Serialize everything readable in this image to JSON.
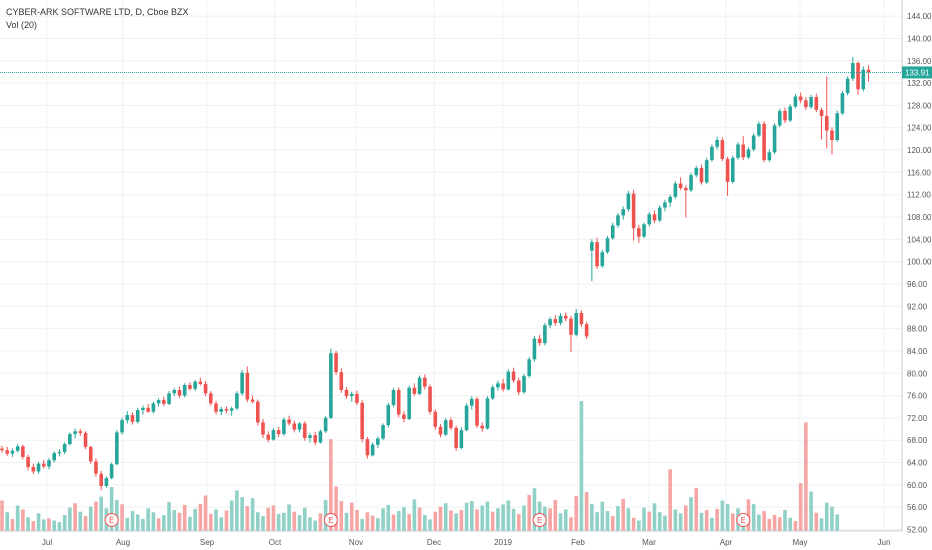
{
  "chart_data": {
    "type": "candlestick",
    "title": "CYBER-ARK SOFTWARE LTD, D, Cboe BZX",
    "subtitle": "Vol (20)",
    "y_ticks": [
      "144.00",
      "140.00",
      "136.00",
      "132.00",
      "128.00",
      "124.00",
      "120.00",
      "116.00",
      "112.00",
      "108.00",
      "104.00",
      "100.00",
      "96.00",
      "92.00",
      "88.00",
      "84.00",
      "80.00",
      "76.00",
      "72.00",
      "68.00",
      "64.00",
      "60.00",
      "56.00",
      "52.00"
    ],
    "ylim": [
      52,
      146
    ],
    "x_labels": [
      "Jul",
      "Aug",
      "Sep",
      "Oct",
      "Nov",
      "Dec",
      "2019",
      "Feb",
      "Mar",
      "Apr",
      "May",
      "Jun"
    ],
    "last_price": "133.91",
    "earnings_marker": "E",
    "grid": true,
    "colors": {
      "up": "#26a69a",
      "down": "#ef5350",
      "up_vol": "#8fd1c7",
      "down_vol": "#f5a6a4",
      "price_line": "#26a69a",
      "grid": "#eef0f3",
      "axis_text": "#555555"
    },
    "earnings_days": [
      21,
      63,
      103,
      142
    ],
    "candles": [
      [
        66.5,
        67.0,
        65.8,
        66.2
      ],
      [
        66.2,
        66.8,
        65.2,
        65.6
      ],
      [
        65.6,
        66.5,
        65.0,
        66.1
      ],
      [
        66.1,
        67.3,
        65.8,
        66.9
      ],
      [
        66.9,
        67.2,
        64.6,
        65.0
      ],
      [
        65.0,
        65.4,
        62.6,
        63.2
      ],
      [
        63.2,
        63.8,
        61.9,
        62.4
      ],
      [
        62.4,
        64.1,
        62.0,
        63.8
      ],
      [
        63.8,
        64.5,
        62.9,
        63.3
      ],
      [
        63.3,
        64.8,
        62.8,
        64.4
      ],
      [
        64.4,
        66.0,
        64.0,
        65.7
      ],
      [
        65.7,
        66.4,
        65.1,
        65.9
      ],
      [
        65.9,
        67.6,
        65.5,
        67.3
      ],
      [
        67.3,
        69.4,
        67.1,
        69.1
      ],
      [
        69.1,
        70.1,
        68.3,
        69.6
      ],
      [
        69.6,
        70.0,
        68.8,
        69.3
      ],
      [
        69.3,
        69.6,
        66.4,
        66.8
      ],
      [
        66.8,
        67.0,
        63.8,
        64.2
      ],
      [
        64.2,
        64.8,
        61.4,
        62.0
      ],
      [
        62.0,
        62.5,
        59.0,
        59.8
      ],
      [
        59.8,
        61.5,
        59.5,
        61.2
      ],
      [
        61.2,
        64.0,
        61.0,
        63.7
      ],
      [
        63.7,
        69.8,
        63.5,
        69.4
      ],
      [
        69.4,
        72.0,
        69.0,
        71.6
      ],
      [
        71.6,
        73.2,
        71.0,
        72.5
      ],
      [
        72.5,
        73.0,
        70.8,
        71.3
      ],
      [
        71.3,
        73.8,
        71.0,
        73.4
      ],
      [
        73.4,
        74.2,
        72.6,
        73.8
      ],
      [
        73.8,
        74.5,
        72.9,
        73.1
      ],
      [
        73.1,
        74.9,
        72.8,
        74.6
      ],
      [
        74.6,
        75.5,
        74.0,
        75.2
      ],
      [
        75.2,
        75.8,
        74.1,
        74.5
      ],
      [
        74.5,
        76.8,
        74.3,
        76.4
      ],
      [
        76.4,
        77.4,
        75.9,
        77.0
      ],
      [
        77.0,
        77.6,
        75.6,
        76.0
      ],
      [
        76.0,
        78.2,
        75.7,
        77.9
      ],
      [
        77.9,
        78.4,
        76.9,
        77.2
      ],
      [
        77.2,
        78.8,
        76.8,
        78.5
      ],
      [
        78.5,
        79.2,
        77.8,
        78.1
      ],
      [
        78.1,
        78.6,
        75.9,
        76.4
      ],
      [
        76.4,
        76.8,
        74.2,
        74.6
      ],
      [
        74.6,
        75.0,
        72.6,
        73.1
      ],
      [
        73.1,
        74.0,
        72.5,
        73.6
      ],
      [
        73.6,
        74.1,
        72.8,
        73.3
      ],
      [
        73.3,
        74.0,
        72.4,
        73.7
      ],
      [
        73.7,
        76.8,
        73.4,
        76.4
      ],
      [
        76.4,
        80.6,
        76.0,
        80.1
      ],
      [
        80.1,
        81.2,
        74.8,
        75.3
      ],
      [
        75.3,
        76.0,
        74.6,
        74.9
      ],
      [
        74.9,
        75.3,
        70.6,
        71.2
      ],
      [
        71.2,
        71.8,
        68.4,
        69.0
      ],
      [
        69.0,
        69.6,
        67.6,
        68.1
      ],
      [
        68.1,
        70.2,
        67.9,
        69.8
      ],
      [
        69.8,
        70.4,
        68.6,
        69.1
      ],
      [
        69.1,
        72.1,
        68.8,
        71.7
      ],
      [
        71.7,
        72.4,
        70.6,
        71.0
      ],
      [
        71.0,
        71.5,
        69.4,
        69.9
      ],
      [
        69.9,
        71.3,
        69.4,
        71.0
      ],
      [
        71.0,
        71.4,
        67.9,
        68.4
      ],
      [
        68.4,
        69.3,
        67.6,
        68.9
      ],
      [
        68.9,
        69.5,
        67.1,
        67.6
      ],
      [
        67.6,
        69.9,
        67.4,
        69.6
      ],
      [
        69.6,
        72.3,
        69.3,
        72.0
      ],
      [
        72.0,
        84.4,
        71.8,
        83.6
      ],
      [
        83.6,
        84.0,
        79.7,
        80.2
      ],
      [
        80.2,
        80.9,
        76.5,
        77.0
      ],
      [
        77.0,
        77.5,
        75.4,
        75.9
      ],
      [
        75.9,
        76.7,
        74.9,
        76.3
      ],
      [
        76.3,
        76.9,
        74.3,
        74.7
      ],
      [
        74.7,
        75.2,
        67.6,
        68.2
      ],
      [
        68.2,
        68.6,
        64.7,
        65.3
      ],
      [
        65.3,
        67.6,
        65.1,
        67.2
      ],
      [
        67.2,
        68.7,
        66.6,
        68.3
      ],
      [
        68.3,
        71.0,
        68.0,
        70.7
      ],
      [
        70.7,
        74.7,
        70.3,
        74.3
      ],
      [
        74.3,
        77.4,
        73.9,
        77.0
      ],
      [
        77.0,
        77.5,
        72.1,
        72.6
      ],
      [
        72.6,
        73.2,
        71.2,
        71.8
      ],
      [
        71.8,
        77.8,
        71.6,
        77.4
      ],
      [
        77.4,
        78.2,
        75.9,
        76.3
      ],
      [
        76.3,
        79.6,
        76.1,
        79.2
      ],
      [
        79.2,
        79.8,
        77.1,
        77.6
      ],
      [
        77.6,
        78.0,
        72.6,
        73.1
      ],
      [
        73.1,
        73.5,
        69.9,
        70.4
      ],
      [
        70.4,
        70.9,
        68.5,
        69.0
      ],
      [
        69.0,
        72.0,
        68.7,
        71.6
      ],
      [
        71.6,
        72.1,
        69.8,
        70.2
      ],
      [
        70.2,
        70.6,
        66.1,
        66.6
      ],
      [
        66.6,
        70.3,
        66.4,
        69.8
      ],
      [
        69.8,
        74.6,
        69.6,
        74.2
      ],
      [
        74.2,
        75.9,
        73.5,
        75.4
      ],
      [
        75.4,
        75.8,
        70.2,
        70.6
      ],
      [
        70.6,
        71.2,
        69.5,
        70.1
      ],
      [
        70.1,
        75.9,
        69.9,
        75.5
      ],
      [
        75.5,
        77.9,
        75.2,
        77.5
      ],
      [
        77.5,
        78.7,
        76.9,
        78.2
      ],
      [
        78.2,
        79.0,
        76.7,
        77.1
      ],
      [
        77.1,
        80.7,
        76.9,
        80.3
      ],
      [
        80.3,
        81.0,
        78.3,
        78.7
      ],
      [
        78.7,
        79.2,
        76.1,
        76.6
      ],
      [
        76.6,
        79.9,
        76.3,
        79.5
      ],
      [
        79.5,
        82.9,
        79.2,
        82.5
      ],
      [
        82.5,
        86.7,
        82.1,
        86.2
      ],
      [
        86.2,
        86.9,
        84.9,
        85.4
      ],
      [
        85.4,
        89.0,
        85.0,
        88.6
      ],
      [
        88.6,
        90.1,
        88.1,
        89.7
      ],
      [
        89.7,
        90.4,
        88.5,
        89.0
      ],
      [
        89.0,
        90.8,
        88.6,
        90.3
      ],
      [
        90.3,
        90.9,
        89.3,
        89.8
      ],
      [
        89.8,
        90.3,
        83.8,
        86.9
      ],
      [
        86.9,
        91.5,
        86.6,
        90.8
      ],
      [
        90.8,
        91.3,
        88.3,
        88.8
      ],
      [
        88.8,
        89.2,
        86.1,
        86.6
      ],
      [
        102.0,
        104.0,
        96.5,
        103.5
      ],
      [
        103.5,
        104.3,
        98.7,
        99.2
      ],
      [
        99.2,
        102.1,
        98.9,
        101.7
      ],
      [
        101.7,
        104.6,
        101.4,
        104.2
      ],
      [
        104.2,
        107.0,
        103.9,
        106.5
      ],
      [
        106.5,
        108.7,
        106.1,
        108.3
      ],
      [
        108.3,
        109.9,
        107.5,
        109.4
      ],
      [
        109.4,
        112.7,
        109.0,
        112.2
      ],
      [
        112.2,
        112.9,
        103.8,
        106.0
      ],
      [
        106.0,
        106.6,
        103.4,
        104.5
      ],
      [
        104.5,
        107.0,
        104.2,
        106.7
      ],
      [
        106.7,
        108.9,
        106.3,
        108.5
      ],
      [
        108.5,
        109.2,
        106.9,
        107.4
      ],
      [
        107.4,
        110.1,
        107.1,
        109.7
      ],
      [
        109.7,
        111.1,
        109.0,
        110.6
      ],
      [
        110.6,
        112.0,
        109.8,
        111.6
      ],
      [
        111.6,
        114.4,
        111.3,
        114.0
      ],
      [
        114.0,
        115.1,
        112.8,
        113.2
      ],
      [
        113.2,
        113.7,
        107.9,
        112.8
      ],
      [
        112.8,
        115.9,
        112.5,
        115.5
      ],
      [
        115.5,
        117.2,
        115.1,
        116.8
      ],
      [
        116.8,
        117.4,
        113.8,
        114.2
      ],
      [
        114.2,
        118.6,
        113.9,
        118.2
      ],
      [
        118.2,
        121.0,
        117.9,
        120.6
      ],
      [
        120.6,
        122.4,
        120.1,
        121.8
      ],
      [
        121.8,
        122.3,
        118.0,
        118.4
      ],
      [
        118.4,
        118.8,
        111.8,
        114.3
      ],
      [
        114.3,
        119.0,
        114.0,
        118.6
      ],
      [
        118.6,
        121.4,
        118.3,
        121.0
      ],
      [
        121.0,
        122.5,
        118.2,
        118.7
      ],
      [
        118.7,
        120.5,
        118.4,
        120.1
      ],
      [
        120.1,
        123.0,
        119.8,
        122.6
      ],
      [
        122.6,
        125.1,
        122.3,
        124.7
      ],
      [
        124.7,
        125.2,
        117.8,
        118.2
      ],
      [
        118.2,
        120.1,
        117.9,
        119.6
      ],
      [
        119.6,
        124.8,
        119.3,
        124.4
      ],
      [
        124.4,
        127.4,
        124.1,
        127.0
      ],
      [
        127.0,
        127.6,
        124.8,
        125.3
      ],
      [
        125.3,
        128.2,
        125.0,
        127.8
      ],
      [
        127.8,
        130.0,
        127.5,
        129.6
      ],
      [
        129.6,
        130.3,
        128.4,
        128.9
      ],
      [
        128.9,
        129.5,
        127.2,
        127.7
      ],
      [
        127.7,
        129.9,
        127.4,
        129.5
      ],
      [
        129.5,
        130.1,
        126.8,
        127.2
      ],
      [
        127.2,
        127.6,
        121.9,
        126.1
      ],
      [
        126.1,
        133.2,
        120.3,
        123.5
      ],
      [
        123.5,
        124.1,
        119.2,
        121.8
      ],
      [
        121.8,
        127.1,
        121.5,
        126.6
      ],
      [
        126.6,
        130.6,
        126.3,
        130.2
      ],
      [
        130.2,
        133.2,
        129.8,
        132.8
      ],
      [
        132.8,
        136.7,
        132.4,
        135.6
      ],
      [
        135.6,
        135.9,
        129.9,
        130.9
      ],
      [
        130.9,
        135.0,
        130.5,
        134.4
      ],
      [
        134.4,
        135.2,
        132.3,
        133.91
      ]
    ],
    "volumes": [
      [
        57.2,
        0
      ],
      [
        55.1,
        1
      ],
      [
        53.9,
        0
      ],
      [
        56.3,
        1
      ],
      [
        55.6,
        0
      ],
      [
        54.2,
        1
      ],
      [
        53.5,
        0
      ],
      [
        54.9,
        1
      ],
      [
        53.8,
        1
      ],
      [
        54.0,
        0
      ],
      [
        53.6,
        1
      ],
      [
        53.3,
        1
      ],
      [
        54.6,
        1
      ],
      [
        55.9,
        1
      ],
      [
        56.7,
        0
      ],
      [
        55.2,
        1
      ],
      [
        54.4,
        0
      ],
      [
        56.1,
        1
      ],
      [
        57.0,
        0
      ],
      [
        57.9,
        1
      ],
      [
        55.8,
        1
      ],
      [
        59.6,
        1
      ],
      [
        57.3,
        1
      ],
      [
        56.5,
        0
      ],
      [
        54.1,
        1
      ],
      [
        55.3,
        1
      ],
      [
        54.7,
        1
      ],
      [
        53.9,
        1
      ],
      [
        55.8,
        1
      ],
      [
        55.1,
        1
      ],
      [
        54.0,
        0
      ],
      [
        54.6,
        1
      ],
      [
        56.9,
        1
      ],
      [
        55.5,
        1
      ],
      [
        55.0,
        0
      ],
      [
        56.4,
        0
      ],
      [
        54.3,
        1
      ],
      [
        55.7,
        1
      ],
      [
        56.6,
        0
      ],
      [
        58.1,
        0
      ],
      [
        54.8,
        0
      ],
      [
        55.6,
        1
      ],
      [
        54.2,
        1
      ],
      [
        55.4,
        0
      ],
      [
        57.2,
        1
      ],
      [
        59.0,
        1
      ],
      [
        57.8,
        1
      ],
      [
        56.2,
        0
      ],
      [
        57.6,
        1
      ],
      [
        55.1,
        1
      ],
      [
        54.4,
        1
      ],
      [
        55.9,
        0
      ],
      [
        56.3,
        0
      ],
      [
        54.8,
        1
      ],
      [
        55.0,
        1
      ],
      [
        56.5,
        1
      ],
      [
        55.2,
        0
      ],
      [
        54.6,
        1
      ],
      [
        55.9,
        1
      ],
      [
        54.2,
        1
      ],
      [
        53.6,
        1
      ],
      [
        54.9,
        0
      ],
      [
        57.3,
        1
      ],
      [
        68.2,
        0
      ],
      [
        59.7,
        0
      ],
      [
        57.1,
        0
      ],
      [
        55.0,
        1
      ],
      [
        56.8,
        0
      ],
      [
        55.5,
        0
      ],
      [
        53.9,
        1
      ],
      [
        55.1,
        0
      ],
      [
        54.5,
        0
      ],
      [
        54.0,
        1
      ],
      [
        55.8,
        1
      ],
      [
        56.4,
        1
      ],
      [
        54.7,
        0
      ],
      [
        55.3,
        1
      ],
      [
        56.0,
        1
      ],
      [
        54.8,
        0
      ],
      [
        57.4,
        1
      ],
      [
        55.9,
        0
      ],
      [
        54.6,
        1
      ],
      [
        53.8,
        1
      ],
      [
        55.2,
        0
      ],
      [
        56.1,
        0
      ],
      [
        56.7,
        1
      ],
      [
        55.4,
        0
      ],
      [
        54.9,
        1
      ],
      [
        55.5,
        0
      ],
      [
        56.8,
        1
      ],
      [
        57.1,
        1
      ],
      [
        55.6,
        0
      ],
      [
        56.3,
        1
      ],
      [
        57.0,
        1
      ],
      [
        55.2,
        0
      ],
      [
        55.8,
        1
      ],
      [
        56.5,
        1
      ],
      [
        57.2,
        1
      ],
      [
        55.7,
        1
      ],
      [
        54.8,
        0
      ],
      [
        56.3,
        1
      ],
      [
        58.2,
        0
      ],
      [
        59.4,
        1
      ],
      [
        57.0,
        1
      ],
      [
        56.1,
        1
      ],
      [
        55.8,
        0
      ],
      [
        57.3,
        0
      ],
      [
        54.9,
        1
      ],
      [
        55.6,
        1
      ],
      [
        54.2,
        0
      ],
      [
        58.0,
        0
      ],
      [
        75.0,
        1
      ],
      [
        58.7,
        0
      ],
      [
        56.6,
        1
      ],
      [
        55.1,
        1
      ],
      [
        57.0,
        1
      ],
      [
        55.3,
        1
      ],
      [
        54.4,
        0
      ],
      [
        56.2,
        1
      ],
      [
        57.5,
        0
      ],
      [
        55.8,
        1
      ],
      [
        54.1,
        0
      ],
      [
        53.6,
        1
      ],
      [
        55.9,
        1
      ],
      [
        55.2,
        0
      ],
      [
        56.7,
        1
      ],
      [
        55.1,
        1
      ],
      [
        54.5,
        1
      ],
      [
        62.8,
        0
      ],
      [
        55.6,
        1
      ],
      [
        54.9,
        1
      ],
      [
        56.3,
        0
      ],
      [
        57.8,
        1
      ],
      [
        59.4,
        0
      ],
      [
        55.0,
        1
      ],
      [
        55.5,
        0
      ],
      [
        54.1,
        1
      ],
      [
        55.7,
        0
      ],
      [
        57.2,
        1
      ],
      [
        56.6,
        1
      ],
      [
        54.9,
        0
      ],
      [
        55.8,
        1
      ],
      [
        53.6,
        1
      ],
      [
        57.4,
        0
      ],
      [
        56.6,
        1
      ],
      [
        54.7,
        1
      ],
      [
        55.3,
        0
      ],
      [
        53.9,
        0
      ],
      [
        54.6,
        0
      ],
      [
        54.2,
        0
      ],
      [
        55.5,
        1
      ],
      [
        54.1,
        1
      ],
      [
        53.5,
        0
      ],
      [
        60.3,
        0
      ],
      [
        71.2,
        0
      ],
      [
        58.8,
        1
      ],
      [
        55.0,
        0
      ],
      [
        54.0,
        1
      ],
      [
        56.8,
        1
      ],
      [
        56.1,
        1
      ],
      [
        54.7,
        1
      ]
    ]
  }
}
